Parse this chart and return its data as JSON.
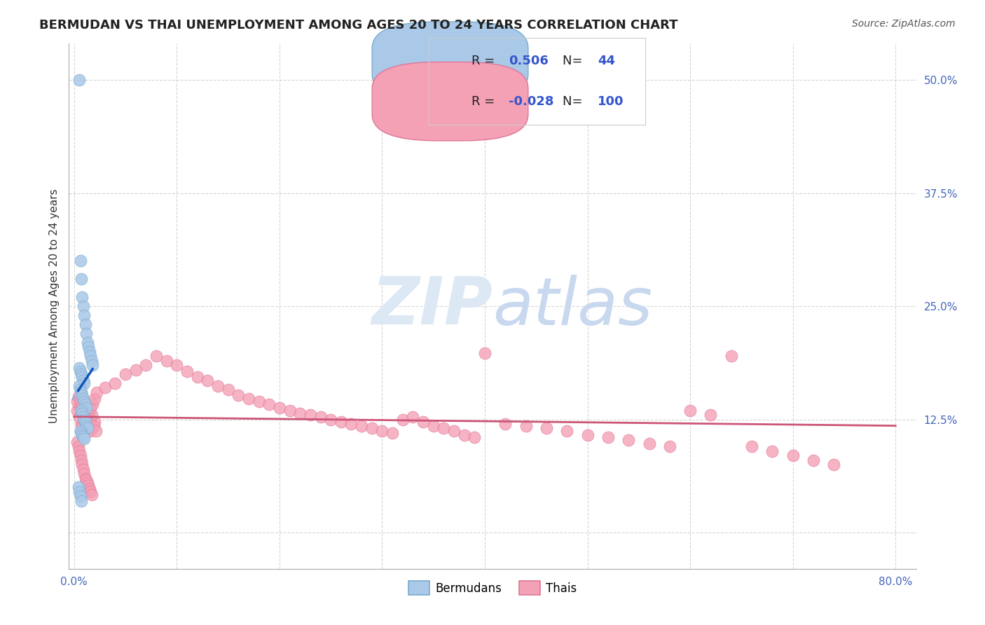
{
  "title": "BERMUDAN VS THAI UNEMPLOYMENT AMONG AGES 20 TO 24 YEARS CORRELATION CHART",
  "source": "Source: ZipAtlas.com",
  "ylabel": "Unemployment Among Ages 20 to 24 years",
  "xlim": [
    -0.005,
    0.82
  ],
  "ylim": [
    -0.04,
    0.54
  ],
  "xticks": [
    0.0,
    0.1,
    0.2,
    0.3,
    0.4,
    0.5,
    0.6,
    0.7,
    0.8
  ],
  "xticklabels": [
    "0.0%",
    "",
    "",
    "",
    "",
    "",
    "",
    "",
    "80.0%"
  ],
  "yticks": [
    0.0,
    0.125,
    0.25,
    0.375,
    0.5
  ],
  "yticklabels": [
    "",
    "12.5%",
    "25.0%",
    "37.5%",
    "50.0%"
  ],
  "grid_color": "#cccccc",
  "bg_color": "#ffffff",
  "bermuda_scatter_color": "#aac8e8",
  "bermuda_edge_color": "#7aabcc",
  "thai_scatter_color": "#f4a0b5",
  "thai_edge_color": "#dd7799",
  "trend_bermuda_color": "#1155bb",
  "trend_bermuda_dash_color": "#88aadd",
  "trend_thai_color": "#cc5577",
  "tick_color": "#4466bb",
  "legend_label_color": "#222222",
  "legend_value_color": "#3355cc",
  "watermark_color": "#dde8f5",
  "bermuda_x": [
    0.005,
    0.006,
    0.007,
    0.008,
    0.009,
    0.01,
    0.011,
    0.012,
    0.013,
    0.014,
    0.015,
    0.016,
    0.017,
    0.018,
    0.005,
    0.006,
    0.007,
    0.008,
    0.009,
    0.01,
    0.005,
    0.006,
    0.007,
    0.008,
    0.009,
    0.01,
    0.011,
    0.012,
    0.007,
    0.008,
    0.009,
    0.01,
    0.011,
    0.012,
    0.013,
    0.006,
    0.007,
    0.008,
    0.009,
    0.01,
    0.004,
    0.005,
    0.006,
    0.007
  ],
  "bermuda_y": [
    0.5,
    0.3,
    0.28,
    0.26,
    0.25,
    0.24,
    0.23,
    0.22,
    0.21,
    0.205,
    0.2,
    0.195,
    0.19,
    0.185,
    0.182,
    0.178,
    0.175,
    0.172,
    0.168,
    0.165,
    0.162,
    0.158,
    0.155,
    0.152,
    0.148,
    0.145,
    0.142,
    0.138,
    0.135,
    0.132,
    0.128,
    0.125,
    0.122,
    0.118,
    0.115,
    0.112,
    0.11,
    0.108,
    0.106,
    0.104,
    0.05,
    0.045,
    0.04,
    0.035
  ],
  "thai_x": [
    0.003,
    0.005,
    0.007,
    0.008,
    0.01,
    0.012,
    0.014,
    0.016,
    0.018,
    0.02,
    0.003,
    0.005,
    0.007,
    0.009,
    0.011,
    0.013,
    0.015,
    0.017,
    0.019,
    0.021,
    0.004,
    0.006,
    0.008,
    0.01,
    0.012,
    0.014,
    0.016,
    0.018,
    0.02,
    0.022,
    0.03,
    0.04,
    0.05,
    0.06,
    0.07,
    0.08,
    0.09,
    0.1,
    0.11,
    0.12,
    0.13,
    0.14,
    0.15,
    0.16,
    0.17,
    0.18,
    0.19,
    0.2,
    0.21,
    0.22,
    0.23,
    0.24,
    0.25,
    0.26,
    0.27,
    0.28,
    0.29,
    0.3,
    0.31,
    0.32,
    0.33,
    0.34,
    0.35,
    0.36,
    0.37,
    0.38,
    0.39,
    0.4,
    0.42,
    0.44,
    0.46,
    0.48,
    0.5,
    0.52,
    0.54,
    0.56,
    0.58,
    0.6,
    0.62,
    0.64,
    0.66,
    0.68,
    0.7,
    0.72,
    0.74,
    0.003,
    0.004,
    0.005,
    0.006,
    0.007,
    0.008,
    0.009,
    0.01,
    0.011,
    0.012,
    0.013,
    0.014,
    0.015,
    0.016,
    0.017
  ],
  "thai_y": [
    0.135,
    0.14,
    0.12,
    0.118,
    0.125,
    0.13,
    0.115,
    0.112,
    0.118,
    0.122,
    0.145,
    0.128,
    0.132,
    0.138,
    0.115,
    0.12,
    0.125,
    0.13,
    0.118,
    0.112,
    0.15,
    0.145,
    0.14,
    0.135,
    0.128,
    0.132,
    0.138,
    0.142,
    0.148,
    0.155,
    0.16,
    0.165,
    0.175,
    0.18,
    0.185,
    0.195,
    0.19,
    0.185,
    0.178,
    0.172,
    0.168,
    0.162,
    0.158,
    0.152,
    0.148,
    0.145,
    0.142,
    0.138,
    0.135,
    0.132,
    0.13,
    0.128,
    0.125,
    0.122,
    0.12,
    0.118,
    0.115,
    0.112,
    0.11,
    0.125,
    0.128,
    0.122,
    0.118,
    0.115,
    0.112,
    0.108,
    0.105,
    0.198,
    0.12,
    0.118,
    0.115,
    0.112,
    0.108,
    0.105,
    0.102,
    0.098,
    0.095,
    0.135,
    0.13,
    0.195,
    0.095,
    0.09,
    0.085,
    0.08,
    0.075,
    0.1,
    0.095,
    0.09,
    0.085,
    0.08,
    0.075,
    0.07,
    0.065,
    0.06,
    0.058,
    0.055,
    0.052,
    0.048,
    0.045,
    0.042
  ]
}
